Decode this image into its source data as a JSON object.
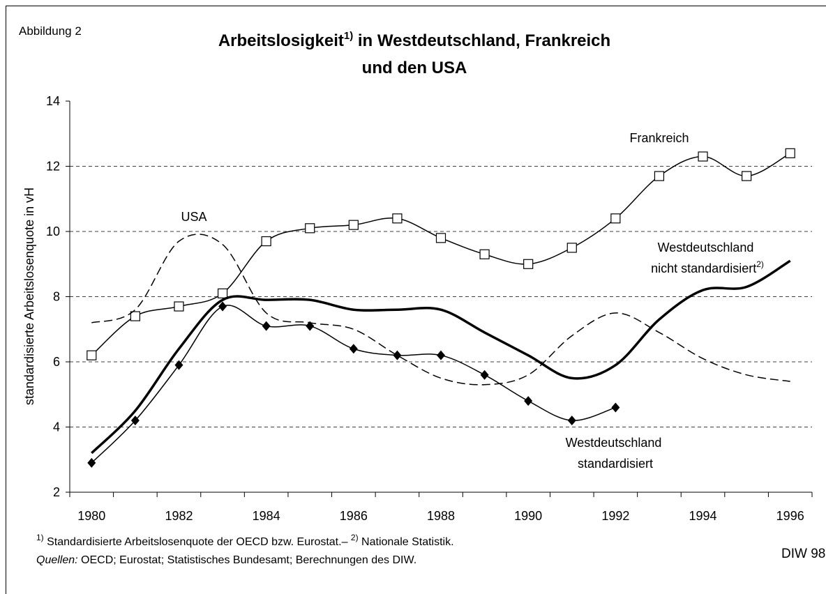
{
  "chart_data": {
    "type": "line",
    "figure_label": "Abbildung 2",
    "title": [
      "Arbeitslosigkeit",
      "in Westdeutschland, Frankreich",
      "und den USA"
    ],
    "title_footnote": "1)",
    "y_label": "standardisierte Arbeitslosenquote in vH",
    "categories": [
      "1980",
      null,
      "1982",
      null,
      "1984",
      null,
      "1986",
      null,
      "1988",
      null,
      "1990",
      null,
      "1992",
      null,
      "1994",
      null,
      "1996"
    ],
    "ylim": [
      2,
      14
    ],
    "yticks": [
      2,
      4,
      6,
      8,
      10,
      12,
      14
    ],
    "grid": true,
    "series": [
      {
        "name": "Frankreich",
        "color": "#000000",
        "style": "solid",
        "marker": "square",
        "values": [
          6.2,
          7.4,
          7.7,
          8.1,
          9.7,
          10.1,
          10.2,
          10.4,
          9.8,
          9.3,
          9.0,
          9.5,
          10.4,
          11.7,
          12.3,
          11.7,
          12.4
        ]
      },
      {
        "name": "USA",
        "color": "#000000",
        "style": "dashed",
        "marker": "none",
        "values": [
          7.2,
          7.6,
          9.7,
          9.6,
          7.5,
          7.2,
          7.0,
          6.2,
          5.5,
          5.3,
          5.6,
          6.8,
          7.5,
          6.9,
          6.1,
          5.6,
          5.4
        ]
      },
      {
        "name": "Westdeutschland nicht standardisiert",
        "footnote": "2)",
        "color": "#000000",
        "style": "thick",
        "marker": "none",
        "values": [
          3.2,
          4.5,
          6.4,
          7.9,
          7.9,
          7.9,
          7.6,
          7.6,
          7.6,
          6.9,
          6.2,
          5.5,
          5.9,
          7.3,
          8.2,
          8.3,
          9.1
        ]
      },
      {
        "name": "Westdeutschland standardisiert",
        "color": "#000000",
        "style": "solid",
        "marker": "diamond",
        "values": [
          2.9,
          4.2,
          5.9,
          7.7,
          7.1,
          7.1,
          6.4,
          6.2,
          6.2,
          5.6,
          4.8,
          4.2,
          4.6,
          null,
          null,
          null,
          null
        ]
      }
    ],
    "footnotes": [
      {
        "marker": "1)",
        "text": "Standardisierte Arbeitslosenquote der OECD bzw. Eurostat.–"
      },
      {
        "marker": "2)",
        "text": "Nationale Statistik."
      }
    ],
    "sources": {
      "label": "Quellen:",
      "text": "OECD; Eurostat; Statistisches Bundesamt; Berechnungen des DIW."
    },
    "credit": "DIW 98"
  }
}
